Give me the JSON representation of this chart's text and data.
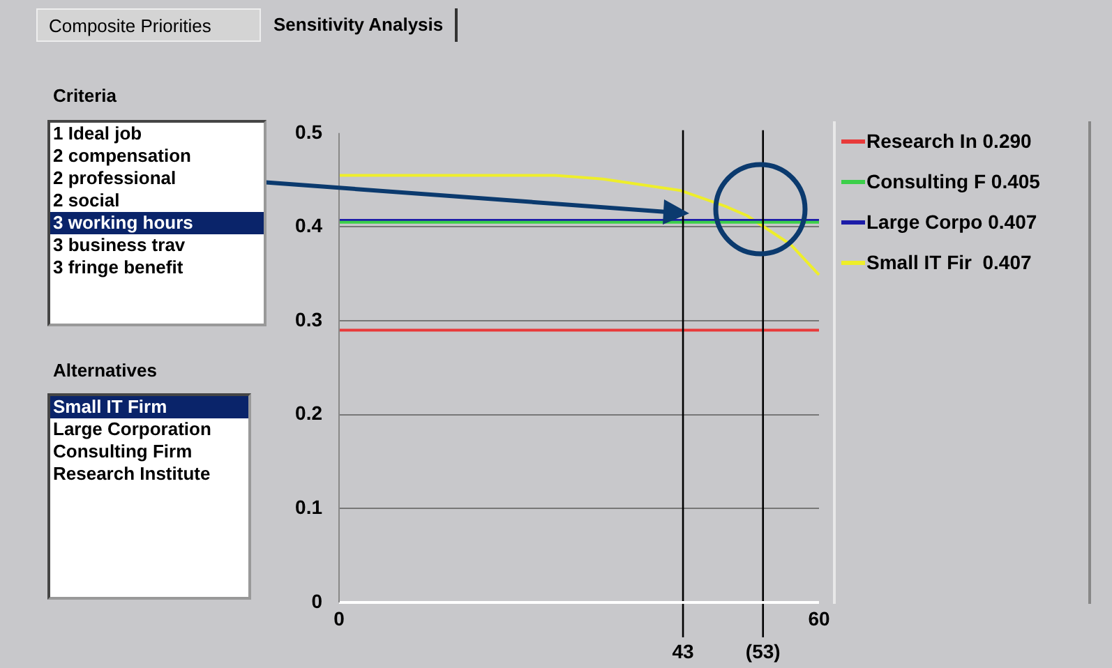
{
  "chart_data": {
    "type": "line",
    "xlim": [
      0,
      60
    ],
    "xticks": [
      0,
      60
    ],
    "ylim": [
      0,
      0.5
    ],
    "yticks": [
      0,
      0.1,
      0.2,
      0.3,
      0.4,
      0.5
    ],
    "grid": "y",
    "legend": "right",
    "marker": "none",
    "line_style": "solid",
    "series": [
      {
        "name": "Research In 0.290",
        "color": "#e83a3a",
        "x": [
          0,
          60
        ],
        "values": [
          0.29,
          0.29
        ]
      },
      {
        "name": "Consulting F 0.405",
        "color": "#3ccf4a",
        "x": [
          0,
          60
        ],
        "values": [
          0.405,
          0.405
        ]
      },
      {
        "name": "Large Corpo 0.407",
        "color": "#1c1ca8",
        "x": [
          0,
          60
        ],
        "values": [
          0.407,
          0.407
        ]
      },
      {
        "name": "Small IT Fir  0.407",
        "color": "#eeee2a",
        "x": [
          0,
          27,
          33,
          42.6,
          48.3,
          51,
          56.5,
          60
        ],
        "values": [
          0.455,
          0.455,
          0.451,
          0.439,
          0.422,
          0.412,
          0.381,
          0.349
        ]
      }
    ],
    "ref_lines": [
      {
        "axis": "x",
        "value": 43,
        "label": "43",
        "color": "#000000"
      },
      {
        "axis": "x",
        "value": 53,
        "label": "(53)",
        "color": "#000000"
      }
    ],
    "annotations": [
      "Composite Priorities",
      "Sensitivity Analysis",
      "Criteria",
      "1 Ideal job",
      "2 compensation",
      "2 professional",
      "2 social",
      "3 working hours",
      "3 business trav",
      "3 fringe benefit",
      "Alternatives",
      "Small IT Firm",
      "Large Corporation",
      "Consulting Firm",
      "Research Institute"
    ]
  }
}
